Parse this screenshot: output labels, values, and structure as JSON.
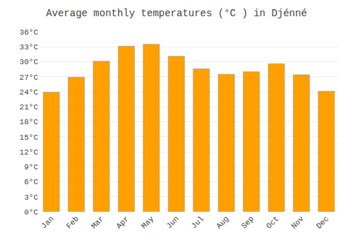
{
  "chart_data": {
    "type": "bar",
    "title": "Average monthly temperatures (°C ) in Djénné",
    "categories": [
      "Jan",
      "Feb",
      "Mar",
      "Apr",
      "May",
      "Jun",
      "Jul",
      "Aug",
      "Sep",
      "Oct",
      "Nov",
      "Dec"
    ],
    "values": [
      23.9,
      26.9,
      30.1,
      33.1,
      33.5,
      31.1,
      28.6,
      27.5,
      28.0,
      29.6,
      27.4,
      24.1
    ],
    "color": "#FFA000",
    "ylim": [
      0,
      36
    ],
    "yticks": [
      {
        "value": 0,
        "label": "0°C"
      },
      {
        "value": 3,
        "label": "3°C"
      },
      {
        "value": 6,
        "label": "6°C"
      },
      {
        "value": 9,
        "label": "9°C"
      },
      {
        "value": 12,
        "label": "12°C"
      },
      {
        "value": 15,
        "label": "15°C"
      },
      {
        "value": 18,
        "label": "18°C"
      },
      {
        "value": 21,
        "label": "21°C"
      },
      {
        "value": 24,
        "label": "24°C"
      },
      {
        "value": 27,
        "label": "27°C"
      },
      {
        "value": 30,
        "label": "30°C"
      },
      {
        "value": 33,
        "label": "33°C"
      },
      {
        "value": 36,
        "label": "36°C"
      }
    ],
    "grid": true
  }
}
